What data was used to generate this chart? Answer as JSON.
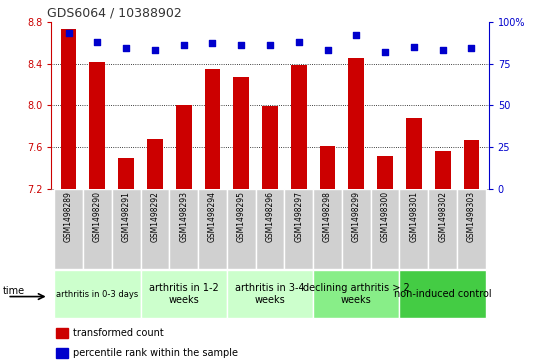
{
  "title": "GDS6064 / 10388902",
  "samples": [
    "GSM1498289",
    "GSM1498290",
    "GSM1498291",
    "GSM1498292",
    "GSM1498293",
    "GSM1498294",
    "GSM1498295",
    "GSM1498296",
    "GSM1498297",
    "GSM1498298",
    "GSM1498299",
    "GSM1498300",
    "GSM1498301",
    "GSM1498302",
    "GSM1498303"
  ],
  "transformed_count": [
    8.73,
    8.41,
    7.49,
    7.68,
    8.0,
    8.35,
    8.27,
    7.99,
    8.39,
    7.61,
    8.45,
    7.51,
    7.88,
    7.56,
    7.67
  ],
  "percentile_rank": [
    93,
    88,
    84,
    83,
    86,
    87,
    86,
    86,
    88,
    83,
    92,
    82,
    85,
    83,
    84
  ],
  "ylim_left": [
    7.2,
    8.8
  ],
  "ylim_right": [
    0,
    100
  ],
  "yticks_left": [
    7.2,
    7.6,
    8.0,
    8.4,
    8.8
  ],
  "yticks_right": [
    0,
    25,
    50,
    75,
    100
  ],
  "bar_color": "#cc0000",
  "dot_color": "#0000cc",
  "groups": [
    {
      "label": "arthritis in 0-3 days",
      "start": 0,
      "end": 3,
      "color": "#ccffcc",
      "small_font": true
    },
    {
      "label": "arthritis in 1-2\nweeks",
      "start": 3,
      "end": 6,
      "color": "#ccffcc",
      "small_font": false
    },
    {
      "label": "arthritis in 3-4\nweeks",
      "start": 6,
      "end": 9,
      "color": "#ccffcc",
      "small_font": false
    },
    {
      "label": "declining arthritis > 2\nweeks",
      "start": 9,
      "end": 12,
      "color": "#88ee88",
      "small_font": false
    },
    {
      "label": "non-induced control",
      "start": 12,
      "end": 15,
      "color": "#44cc44",
      "small_font": false
    }
  ],
  "xlabel_time": "time",
  "legend_bar_label": "transformed count",
  "legend_dot_label": "percentile rank within the sample",
  "grid_color": "#000000",
  "background_color": "#ffffff",
  "tick_color_left": "#cc0000",
  "tick_color_right": "#0000cc",
  "bar_width": 0.55,
  "cell_color": "#d0d0d0",
  "cell_edge_color": "#ffffff"
}
